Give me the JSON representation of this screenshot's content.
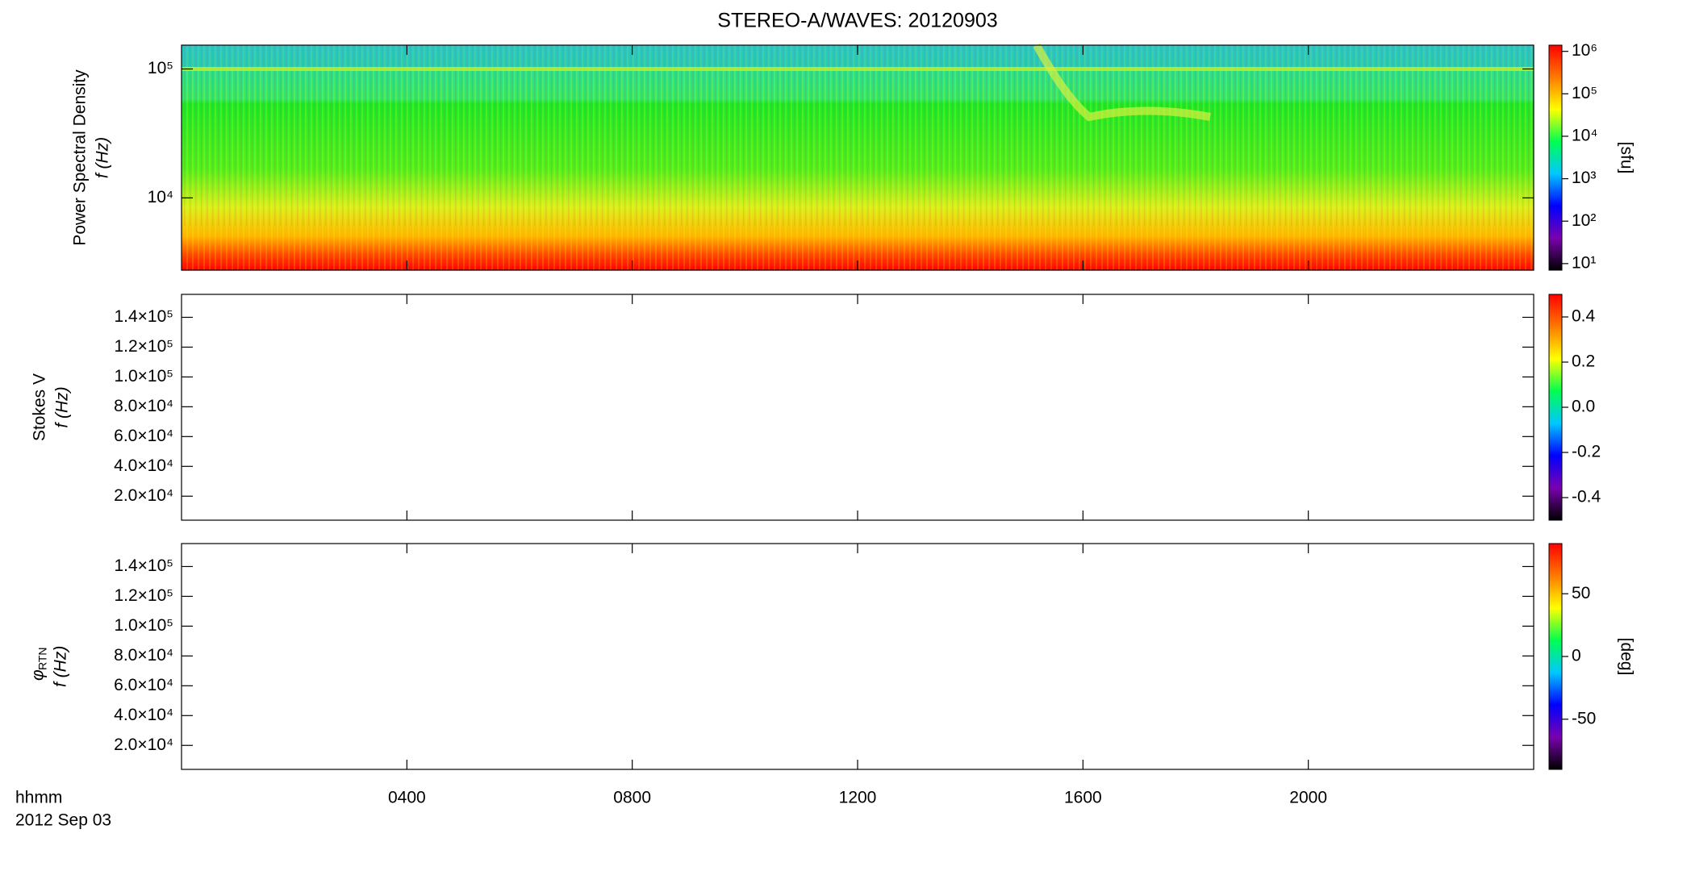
{
  "chart_data": [
    {
      "type": "heatmap",
      "title": "STEREO-A/WAVES: 20120903",
      "ylabel": [
        "Power Spectral Density",
        "f (Hz)"
      ],
      "xlim": [
        0,
        24
      ],
      "ylim": [
        2750,
        153000
      ],
      "log": true,
      "yticks": [
        {
          "value": 10000,
          "label": "10⁴"
        },
        {
          "value": 100000,
          "label": "10⁵"
        }
      ],
      "colormap": [
        "#000000",
        "#7a00b0",
        "#0000ff",
        "#00c8ff",
        "#00ff50",
        "#ffff00",
        "#ff7a00",
        "#ff0000"
      ],
      "colorbar": {
        "label": "[sfu]",
        "lim": [
          7,
          1400000
        ],
        "log": true,
        "ticks": [
          {
            "value": 10,
            "label": "10¹"
          },
          {
            "value": 100,
            "label": "10²"
          },
          {
            "value": 1000,
            "label": "10³"
          },
          {
            "value": 10000,
            "label": "10⁴"
          },
          {
            "value": 100000,
            "label": "10⁵"
          },
          {
            "value": 1000000,
            "label": "10⁶"
          }
        ]
      }
    },
    {
      "type": "heatmap",
      "ylabel": [
        "Stokes V",
        "f (Hz)"
      ],
      "xlim": [
        0,
        24
      ],
      "ylim": [
        3900,
        155400
      ],
      "log": false,
      "yticks": [
        {
          "value": 20000,
          "label": "2.0×10⁴"
        },
        {
          "value": 40000,
          "label": "4.0×10⁴"
        },
        {
          "value": 60000,
          "label": "6.0×10⁴"
        },
        {
          "value": 80000,
          "label": "8.0×10⁴"
        },
        {
          "value": 100000,
          "label": "1.0×10⁵"
        },
        {
          "value": 120000,
          "label": "1.2×10⁵"
        },
        {
          "value": 140000,
          "label": "1.4×10⁵"
        }
      ],
      "colormap": [
        "#000000",
        "#7a00b0",
        "#0000ff",
        "#00c8ff",
        "#00ff50",
        "#ffff00",
        "#ff7a00",
        "#ff0000"
      ],
      "colorbar": {
        "lim": [
          -0.5,
          0.5
        ],
        "log": false,
        "ticks": [
          {
            "value": -0.4,
            "label": "-0.4"
          },
          {
            "value": -0.2,
            "label": "-0.2"
          },
          {
            "value": 0,
            "label": "0.0"
          },
          {
            "value": 0.2,
            "label": "0.2"
          },
          {
            "value": 0.4,
            "label": "0.4"
          }
        ]
      }
    },
    {
      "type": "heatmap",
      "ylabel": [
        "φ",
        "RTN",
        "f (Hz)"
      ],
      "xlim": [
        0,
        24
      ],
      "xticks": [
        {
          "value": 4,
          "label": "0400"
        },
        {
          "value": 8,
          "label": "0800"
        },
        {
          "value": 12,
          "label": "1200"
        },
        {
          "value": 16,
          "label": "1600"
        },
        {
          "value": 20,
          "label": "2000"
        }
      ],
      "xlabel": [
        "hhmm",
        "2012 Sep 03"
      ],
      "ylim": [
        3900,
        155400
      ],
      "log": false,
      "yticks": [
        {
          "value": 20000,
          "label": "2.0×10⁴"
        },
        {
          "value": 40000,
          "label": "4.0×10⁴"
        },
        {
          "value": 60000,
          "label": "6.0×10⁴"
        },
        {
          "value": 80000,
          "label": "8.0×10⁴"
        },
        {
          "value": 100000,
          "label": "1.0×10⁵"
        },
        {
          "value": 120000,
          "label": "1.2×10⁵"
        },
        {
          "value": 140000,
          "label": "1.4×10⁵"
        }
      ],
      "colormap": [
        "#000000",
        "#7a00b0",
        "#0000ff",
        "#00c8ff",
        "#00ff50",
        "#ffff00",
        "#ff7a00",
        "#ff0000"
      ],
      "colorbar": {
        "label": "[deg]",
        "lim": [
          -90,
          90
        ],
        "log": false,
        "ticks": [
          {
            "value": -50,
            "label": "-50"
          },
          {
            "value": 0,
            "label": "0"
          },
          {
            "value": 50,
            "label": "50"
          }
        ]
      }
    }
  ]
}
